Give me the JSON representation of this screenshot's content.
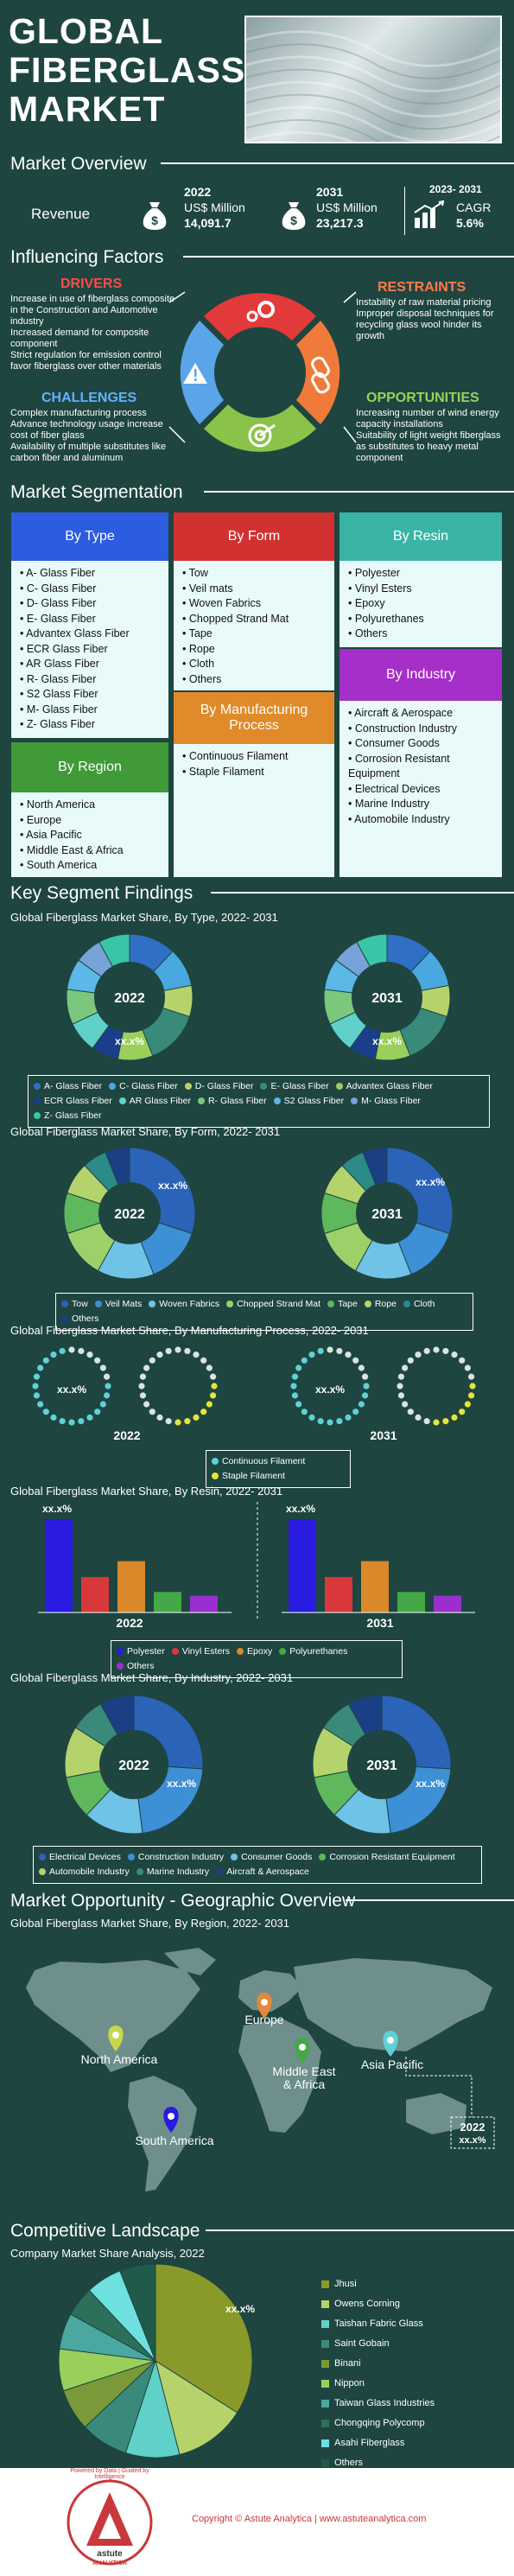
{
  "header": {
    "title_lines": [
      "GLOBAL",
      "FIBERGLASS",
      "MARKET"
    ]
  },
  "overview": {
    "section_title": "Market Overview",
    "revenue_label": "Revenue",
    "y2022": {
      "year": "2022",
      "unit": "US$ Million",
      "value": "14,091.7"
    },
    "y2031": {
      "year": "2031",
      "unit": "US$ Million",
      "value": "23,217.3"
    },
    "cagr": {
      "period": "2023- 2031",
      "label": "CAGR",
      "value": "5.6%"
    }
  },
  "factors": {
    "section_title": "Influencing Factors",
    "drivers": {
      "title": "DRIVERS",
      "items": [
        "Increase in use of fiberglass composite in the Construction and Automotive industry",
        "Increased demand for composite component",
        "Strict regulation for emission control favor fiberglass over other materials"
      ]
    },
    "restraints": {
      "title": "RESTRAINTS",
      "items": [
        "Instability of raw material pricing",
        "Improper disposal techniques for recycling glass wool hinder its growth"
      ]
    },
    "challenges": {
      "title": "CHALLENGES",
      "items": [
        "Complex manufacturing process",
        "Advance technology usage increase cost of fiber glass",
        "Availability of multiple substitutes like carbon fiber and aluminum"
      ]
    },
    "opportunities": {
      "title": "OPPORTUNITIES",
      "items": [
        "Increasing number of wind energy capacity installations",
        "Suitability of light weight fiberglass as substitutes to heavy metal component"
      ]
    }
  },
  "segmentation": {
    "section_title": "Market Segmentation",
    "by_type": {
      "title": "By Type",
      "items": [
        "A- Glass Fiber",
        "C- Glass Fiber",
        "D- Glass Fiber",
        "E- Glass Fiber",
        "Advantex Glass Fiber",
        "ECR Glass Fiber",
        "AR Glass Fiber",
        "R- Glass Fiber",
        "S2 Glass Fiber",
        "M- Glass Fiber",
        "Z- Glass Fiber"
      ]
    },
    "by_form": {
      "title": "By Form",
      "items": [
        "Tow",
        "Veil mats",
        "Woven Fabrics",
        "Chopped Strand Mat",
        "Tape",
        "Rope",
        "Cloth",
        "Others"
      ]
    },
    "by_resin": {
      "title": "By Resin",
      "items": [
        "Polyester",
        "Vinyl Esters",
        "Epoxy",
        "Polyurethanes",
        "Others"
      ]
    },
    "by_industry": {
      "title": "By Industry",
      "items": [
        "Aircraft & Aerospace",
        "Construction Industry",
        "Consumer Goods",
        "Corrosion Resistant Equipment",
        "Electrical Devices",
        "Marine Industry",
        "Automobile Industry"
      ]
    },
    "by_process": {
      "title": "By Manufacturing Process",
      "items": [
        "Continuous Filament",
        "Staple Filament"
      ]
    },
    "by_region": {
      "title": "By Region",
      "items": [
        "North America",
        "Europe",
        "Asia Pacific",
        "Middle East & Africa",
        "South America"
      ]
    }
  },
  "findings": {
    "section_title": "Key Segment Findings",
    "type": {
      "subtitle": "Global Fiberglass Market Share, By Type, 2022- 2031",
      "placeholder": "xx.x%",
      "legend": [
        {
          "label": "A- Glass Fiber",
          "color": "#2f6fc4"
        },
        {
          "label": "C- Glass Fiber",
          "color": "#4aa8e0"
        },
        {
          "label": "D- Glass Fiber",
          "color": "#b6d36b"
        },
        {
          "label": "E- Glass Fiber",
          "color": "#3a8a7c"
        },
        {
          "label": "Advantex Glass Fiber",
          "color": "#9bcf5c"
        },
        {
          "label": "ECR Glass Fiber",
          "color": "#1a3e8a"
        },
        {
          "label": "AR Glass Fiber",
          "color": "#5fd1c8"
        },
        {
          "label": "R- Glass Fiber",
          "color": "#7bc77e"
        },
        {
          "label": "S2 Glass Fiber",
          "color": "#5bb8e8"
        },
        {
          "label": "M- Glass Fiber",
          "color": "#77a3d9"
        },
        {
          "label": "Z- Glass Fiber",
          "color": "#3bc5a8"
        }
      ]
    },
    "form": {
      "subtitle": "Global Fiberglass Market Share, By Form,  2022- 2031",
      "placeholder": "xx.x%",
      "legend": [
        {
          "label": "Tow",
          "color": "#2a63b8"
        },
        {
          "label": "Veil Mats",
          "color": "#3d8fd6"
        },
        {
          "label": "Woven Fabrics",
          "color": "#6fc3e6"
        },
        {
          "label": "Chopped Strand Mat",
          "color": "#9ed06a"
        },
        {
          "label": "Tape",
          "color": "#5fb85c"
        },
        {
          "label": "Rope",
          "color": "#b5d36b"
        },
        {
          "label": "Cloth",
          "color": "#2c8a88"
        },
        {
          "label": "Others",
          "color": "#1b3f85"
        }
      ]
    },
    "process": {
      "subtitle": "Global Fiberglass Market Share, By Manufacturing Process, 2022- 2031",
      "placeholder": "xx.x%",
      "legend": [
        {
          "label": "Continuous Filament",
          "color": "#5fd1d6"
        },
        {
          "label": "Staple Filament",
          "color": "#e6e63a"
        }
      ]
    },
    "resin": {
      "subtitle": "Global Fiberglass Market Share, By Resin,  2022- 2031",
      "placeholder": "xx.x%",
      "legend": [
        {
          "label": "Polyester",
          "color": "#2a1be0"
        },
        {
          "label": "Vinyl Esters",
          "color": "#d8383a"
        },
        {
          "label": "Epoxy",
          "color": "#d9892a"
        },
        {
          "label": "Polyurethanes",
          "color": "#43a845"
        },
        {
          "label": "Others",
          "color": "#9a2fcf"
        }
      ]
    },
    "industry": {
      "subtitle": "Global Fiberglass Market Share, By Industry,  2022- 2031",
      "placeholder": "xx.x%",
      "legend": [
        {
          "label": "Electrical Devices",
          "color": "#2a63b8"
        },
        {
          "label": "Construction Industry",
          "color": "#3d8fd6"
        },
        {
          "label": "Consumer Goods",
          "color": "#6fc3e6"
        },
        {
          "label": "Corrosion Resistant Equipment",
          "color": "#5fb85c"
        },
        {
          "label": "Automobile Industry",
          "color": "#b5d36b"
        },
        {
          "label": "Marine Industry",
          "color": "#3a8a7c"
        },
        {
          "label": "Aircraft & Aerospace",
          "color": "#1b3f85"
        }
      ]
    },
    "year_a": "2022",
    "year_b": "2031"
  },
  "geo": {
    "section_title": "Market Opportunity - Geographic Overview",
    "subtitle": "Global Fiberglass Market Share, By Region, 2022- 2031",
    "regions": [
      {
        "label": "North America",
        "color": "#c9d64a"
      },
      {
        "label": "Europe",
        "color": "#e5883a"
      },
      {
        "label": "Middle East & Africa",
        "color": "#43a845"
      },
      {
        "label": "Asia Pacific",
        "color": "#5fd1d6"
      },
      {
        "label": "South America",
        "color": "#2a1be0"
      }
    ],
    "callout_year": "2022",
    "callout_value": "xx.x%"
  },
  "competitive": {
    "section_title": "Competitive Landscape",
    "subtitle": "Company Market Share Analysis, 2022",
    "placeholder": "xx.x%",
    "companies": [
      {
        "label": "Jhusi",
        "color": "#8a9a2a"
      },
      {
        "label": "Owens Corning",
        "color": "#b6d36b"
      },
      {
        "label": "Taishan Fabric Glass",
        "color": "#5fd1c8"
      },
      {
        "label": "Saint Gobain",
        "color": "#3a8a7c"
      },
      {
        "label": "Binani",
        "color": "#7a9a3a"
      },
      {
        "label": "Nippon",
        "color": "#9bcf5c"
      },
      {
        "label": "Taiwan Glass Industries",
        "color": "#4aa8a0"
      },
      {
        "label": "Chongqing Polycomp",
        "color": "#2c6f5a"
      },
      {
        "label": "Asahi Fiberglass",
        "color": "#6fe0e0"
      },
      {
        "label": "Others",
        "color": "#1f5a4a"
      }
    ]
  },
  "footer": {
    "copyright": "Copyright © Astute Analytica  |  www.astuteanalytica.com",
    "logo_text": "Powered by Data | Guided by Intelligence",
    "brand_top": "astute",
    "brand_bottom": "ANALYTICA"
  }
}
